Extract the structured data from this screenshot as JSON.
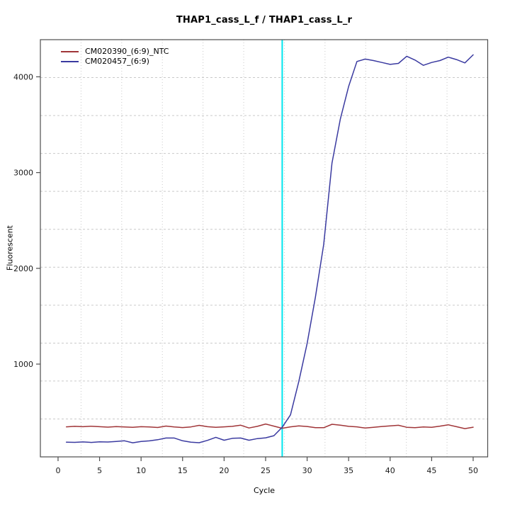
{
  "window": {
    "title": "THAP1_cass_L_f / THAP1_cass_L_r"
  },
  "chart_data": {
    "type": "line",
    "title": "THAP1_cass_L_f / THAP1_cass_L_r",
    "xlabel": "Cycle",
    "ylabel": "Fluorescent",
    "xlim": [
      -2.13,
      51.75
    ],
    "ylim": [
      31,
      4388
    ],
    "xticks": [
      0,
      5,
      10,
      15,
      20,
      25,
      30,
      35,
      40,
      45,
      50
    ],
    "yticks": [
      1000,
      2000,
      3000,
      4000
    ],
    "grid": {
      "divisions": 11,
      "color": "#c9c9c9",
      "vertical_style": "dotted",
      "horizontal_style": "dashed"
    },
    "axis_color": "#4d4d4d",
    "tick_label_color": "#1a1a1a",
    "threshold_line": {
      "orientation": "vertical",
      "x": 27,
      "color": "#00e5ee"
    },
    "legend_position": "top-left",
    "x": [
      1,
      2,
      3,
      4,
      5,
      6,
      7,
      8,
      9,
      10,
      11,
      12,
      13,
      14,
      15,
      16,
      17,
      18,
      19,
      20,
      21,
      22,
      23,
      24,
      25,
      26,
      27,
      28,
      29,
      30,
      31,
      32,
      33,
      34,
      35,
      36,
      37,
      38,
      39,
      40,
      41,
      42,
      43,
      44,
      45,
      46,
      47,
      48,
      49,
      50
    ],
    "series": [
      {
        "name": "CM020390_(6:9)_NTC",
        "color": "#a03538",
        "values": [
          345,
          350,
          346,
          351,
          346,
          342,
          347,
          344,
          340,
          346,
          343,
          338,
          353,
          343,
          337,
          344,
          360,
          346,
          340,
          345,
          350,
          362,
          333,
          350,
          374,
          352,
          330,
          345,
          354,
          348,
          336,
          336,
          371,
          362,
          350,
          345,
          332,
          340,
          348,
          355,
          361,
          340,
          336,
          343,
          340,
          352,
          366,
          346,
          326,
          341
        ]
      },
      {
        "name": "CM020457_(6:9)",
        "color": "#3a3aa0",
        "values": [
          185,
          183,
          187,
          182,
          188,
          186,
          192,
          199,
          178,
          192,
          198,
          210,
          228,
          228,
          199,
          184,
          179,
          203,
          235,
          205,
          225,
          228,
          205,
          222,
          230,
          252,
          340,
          470,
          820,
          1215,
          1700,
          2250,
          3100,
          3560,
          3900,
          4160,
          4185,
          4170,
          4150,
          4130,
          4140,
          4215,
          4175,
          4120,
          4150,
          4170,
          4205,
          4180,
          4145,
          4230
        ]
      }
    ]
  }
}
